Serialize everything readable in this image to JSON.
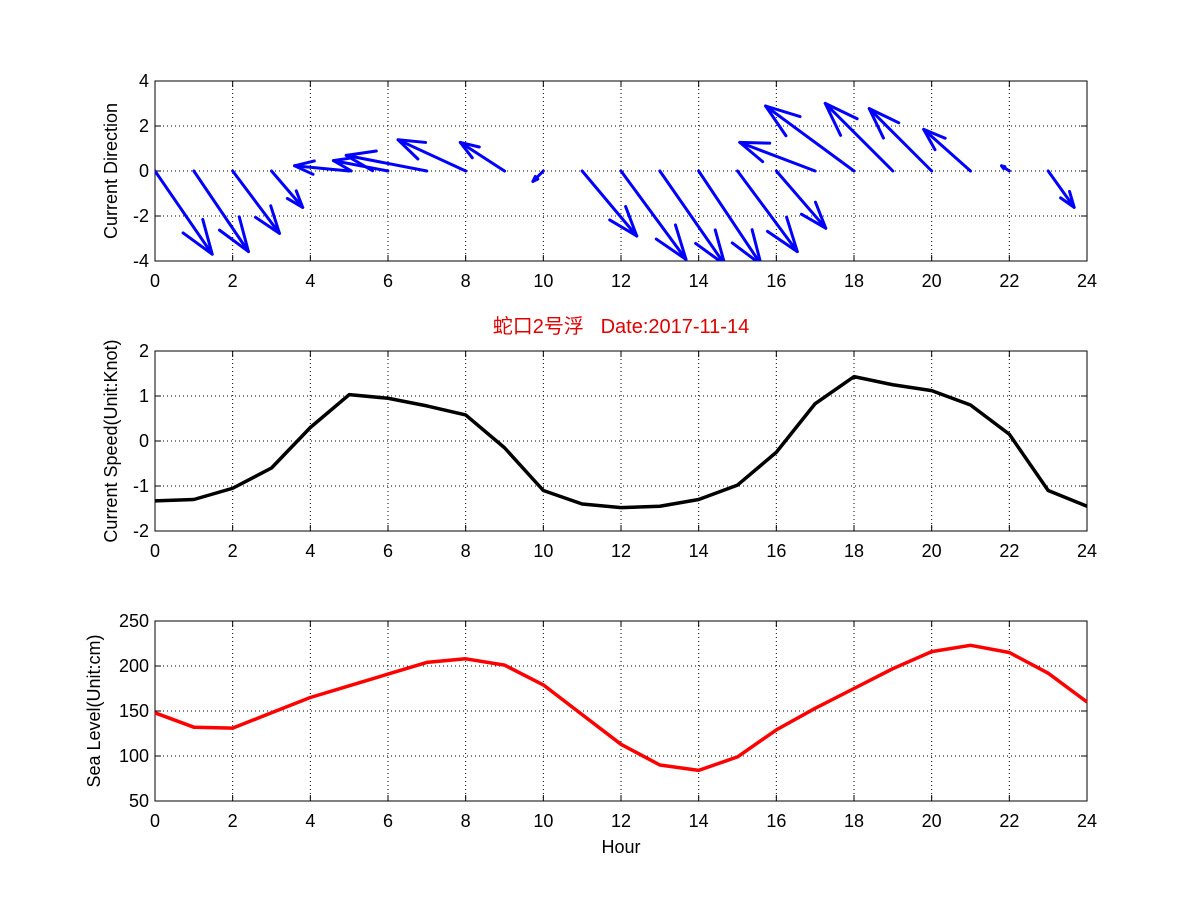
{
  "chart_data": [
    {
      "type": "quiver",
      "xlabel": "",
      "ylabel": "Current Direction",
      "xlim": [
        0,
        24
      ],
      "ylim": [
        -4,
        4
      ],
      "xticks": [
        0,
        2,
        4,
        6,
        8,
        10,
        12,
        14,
        16,
        18,
        20,
        22,
        24
      ],
      "yticks": [
        -4,
        -2,
        0,
        2,
        4
      ],
      "color": "#0000ff",
      "grid": true,
      "vectors": [
        {
          "x": 0,
          "u": 2.2,
          "v": -3.2
        },
        {
          "x": 1,
          "u": 2.1,
          "v": -3.1
        },
        {
          "x": 2,
          "u": 1.8,
          "v": -2.4
        },
        {
          "x": 3,
          "u": 1.2,
          "v": -1.4
        },
        {
          "x": 5,
          "u": -2.1,
          "v": 0.2
        },
        {
          "x": 6,
          "u": -2.1,
          "v": 0.4
        },
        {
          "x": 7,
          "u": -3.1,
          "v": 0.6
        },
        {
          "x": 8,
          "u": -2.6,
          "v": 1.2
        },
        {
          "x": 9,
          "u": -1.7,
          "v": 1.1
        },
        {
          "x": 10,
          "u": -0.4,
          "v": -0.4
        },
        {
          "x": 11,
          "u": 2.1,
          "v": -2.5
        },
        {
          "x": 12,
          "u": 2.5,
          "v": -3.4
        },
        {
          "x": 13,
          "u": 2.5,
          "v": -3.6
        },
        {
          "x": 14,
          "u": 2.4,
          "v": -3.6
        },
        {
          "x": 15,
          "u": 2.3,
          "v": -3.1
        },
        {
          "x": 16,
          "u": 1.9,
          "v": -2.2
        },
        {
          "x": 17,
          "u": -2.9,
          "v": 1.1
        },
        {
          "x": 18,
          "u": -3.4,
          "v": 2.5
        },
        {
          "x": 19,
          "u": -2.6,
          "v": 2.6
        },
        {
          "x": 20,
          "u": -2.4,
          "v": 2.4
        },
        {
          "x": 21,
          "u": -1.8,
          "v": 1.6
        },
        {
          "x": 22,
          "u": -0.3,
          "v": 0.2
        },
        {
          "x": 23,
          "u": 1.0,
          "v": -1.4
        }
      ]
    },
    {
      "type": "line",
      "title": "蛇口2号浮   Date:2017-11-14",
      "xlabel": "",
      "ylabel": "Current Speed(Unit:Knot)",
      "xlim": [
        0,
        24
      ],
      "ylim": [
        -2,
        2
      ],
      "xticks": [
        0,
        2,
        4,
        6,
        8,
        10,
        12,
        14,
        16,
        18,
        20,
        22,
        24
      ],
      "yticks": [
        -2,
        -1,
        0,
        1,
        2
      ],
      "color": "#000000",
      "grid": true,
      "x": [
        0,
        1,
        2,
        3,
        4,
        5,
        6,
        7,
        8,
        9,
        10,
        11,
        12,
        13,
        14,
        15,
        16,
        17,
        18,
        19,
        20,
        21,
        22,
        23,
        24
      ],
      "y": [
        -1.33,
        -1.3,
        -1.05,
        -0.6,
        0.3,
        1.03,
        0.95,
        0.78,
        0.58,
        -0.15,
        -1.1,
        -1.4,
        -1.48,
        -1.45,
        -1.3,
        -0.98,
        -0.25,
        0.83,
        1.43,
        1.25,
        1.12,
        0.8,
        0.15,
        -1.1,
        -1.45
      ]
    },
    {
      "type": "line",
      "xlabel": "Hour",
      "ylabel": "Sea Level(Unit:cm)",
      "xlim": [
        0,
        24
      ],
      "ylim": [
        50,
        250
      ],
      "xticks": [
        0,
        2,
        4,
        6,
        8,
        10,
        12,
        14,
        16,
        18,
        20,
        22,
        24
      ],
      "yticks": [
        50,
        100,
        150,
        200,
        250
      ],
      "color": "#ff0000",
      "grid": true,
      "x": [
        0,
        1,
        2,
        3,
        4,
        5,
        6,
        7,
        8,
        9,
        10,
        11,
        12,
        13,
        14,
        15,
        16,
        17,
        18,
        19,
        20,
        21,
        22,
        23,
        24
      ],
      "y": [
        148,
        132,
        131,
        148,
        165,
        178,
        191,
        204,
        208,
        201,
        179,
        146,
        113,
        90,
        84,
        99,
        129,
        153,
        175,
        197,
        216,
        223,
        215,
        192,
        160
      ]
    }
  ]
}
